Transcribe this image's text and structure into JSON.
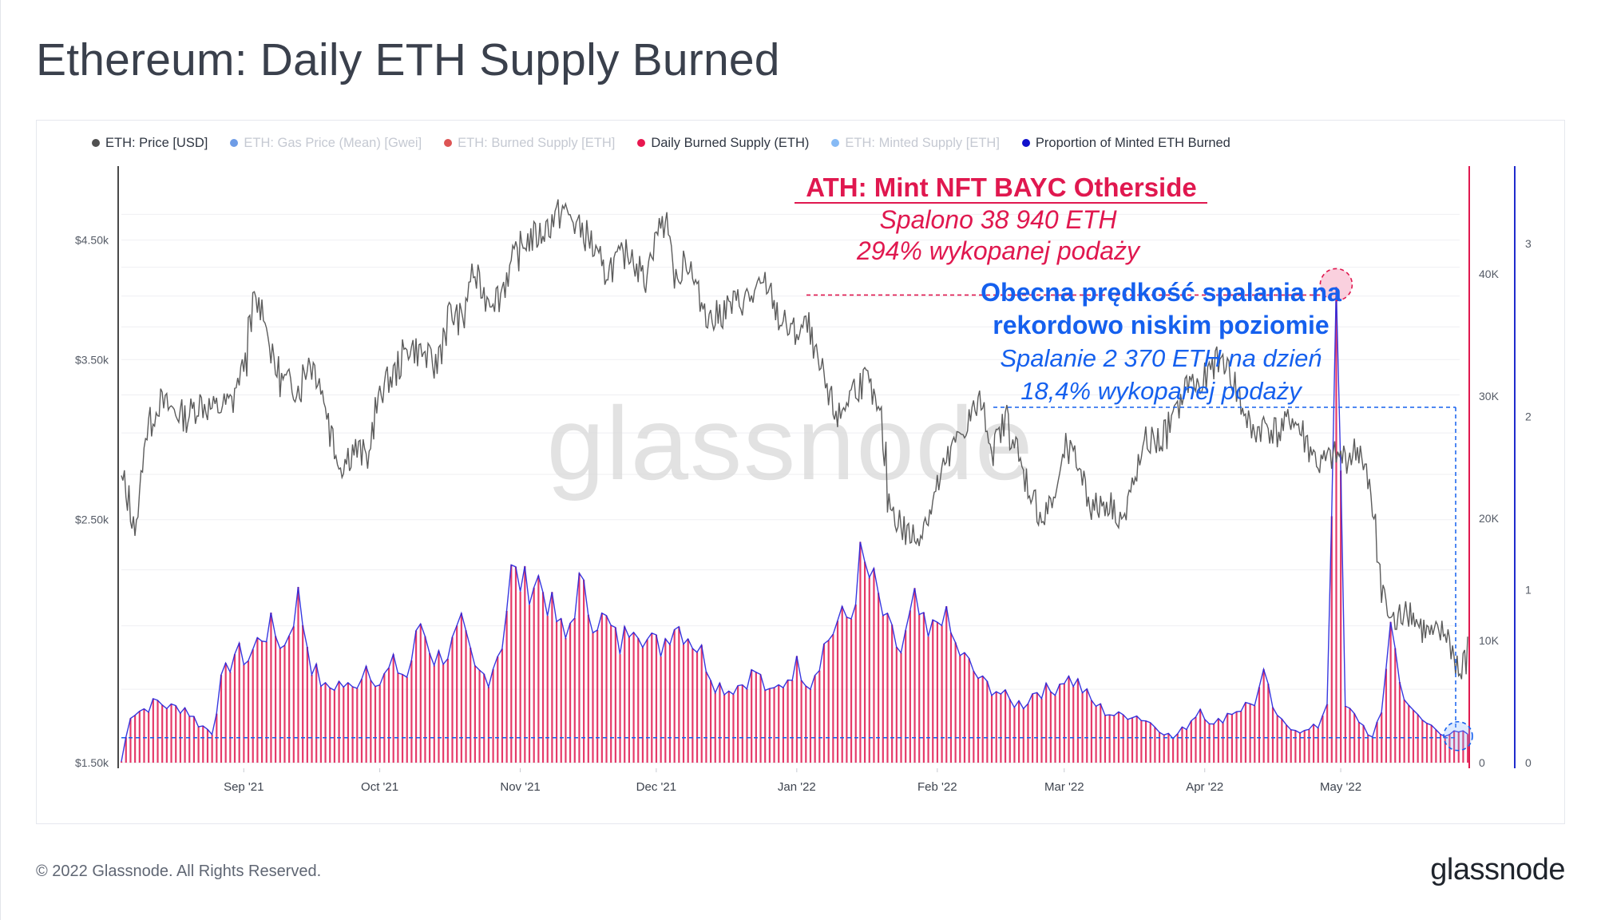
{
  "title": "Ethereum: Daily ETH Supply Burned",
  "footer": {
    "copyright": "© 2022 Glassnode. All Rights Reserved.",
    "logo": "glassnode"
  },
  "watermark": "glassnode",
  "colors": {
    "price": "#5c5c5c",
    "burn_bar": "#e0184f",
    "proportion": "#2222dd",
    "burn_axis": "#e0184f",
    "proportion_axis": "#1f2bcc",
    "ath_annotation": "#e0184f",
    "current_annotation": "#1560ee",
    "grid": "#efeff2"
  },
  "legend": [
    {
      "label": "ETH: Price [USD]",
      "color": "#505050",
      "active": true
    },
    {
      "label": "ETH: Gas Price (Mean) [Gwei]",
      "color": "#3d7bde",
      "active": false
    },
    {
      "label": "ETH: Burned Supply [ETH]",
      "color": "#d11b1b",
      "active": false
    },
    {
      "label": "Daily Burned Supply (ETH)",
      "color": "#e8174f",
      "active": true
    },
    {
      "label": "ETH: Minted Supply [ETH]",
      "color": "#5ea3f2",
      "active": false
    },
    {
      "label": "Proportion of Minted ETH Burned",
      "color": "#1010cc",
      "active": true
    }
  ],
  "annotations": {
    "ath": {
      "title": "ATH: Mint NFT BAYC Otherside",
      "line1": "Spalono 38 940 ETH",
      "line2": "294% wykopanej podaży"
    },
    "current": {
      "title_line1": "Obecna prędkość spalania na",
      "title_line2": "rekordowo niskim poziomie",
      "line1": "Spalanie 2 370 ETH na dzień",
      "line2": "18,4% wykopanej podaży"
    }
  },
  "chart_data": {
    "type": "line",
    "x_range": [
      "2021-08-05",
      "2022-05-29"
    ],
    "x_ticks": [
      {
        "date": "2021-09-01",
        "label": "Sep '21"
      },
      {
        "date": "2021-10-01",
        "label": "Oct '21"
      },
      {
        "date": "2021-11-01",
        "label": "Nov '21"
      },
      {
        "date": "2021-12-01",
        "label": "Dec '21"
      },
      {
        "date": "2022-01-01",
        "label": "Jan '22"
      },
      {
        "date": "2022-02-01",
        "label": "Feb '22"
      },
      {
        "date": "2022-03-01",
        "label": "Mar '22"
      },
      {
        "date": "2022-04-01",
        "label": "Apr '22"
      },
      {
        "date": "2022-05-01",
        "label": "May '22"
      }
    ],
    "axes": {
      "price": {
        "scale": "log",
        "range": [
          1500,
          4850
        ],
        "ticks": [
          1500,
          2500,
          3500,
          4500
        ],
        "tick_labels": [
          "$1.50k",
          "$2.50k",
          "$3.50k",
          "$4.50k"
        ]
      },
      "burned": {
        "range": [
          0,
          44000
        ],
        "ticks": [
          0,
          10000,
          20000,
          30000,
          40000
        ],
        "tick_labels": [
          "0",
          "10K",
          "20K",
          "30K",
          "40K"
        ]
      },
      "proportion": {
        "range": [
          0,
          3.0
        ],
        "ticks": [
          0,
          1,
          2,
          3
        ],
        "tick_labels": [
          "0",
          "1",
          "2",
          "3"
        ]
      }
    },
    "series": [
      {
        "name": "ETH: Price [USD]",
        "axis": "price",
        "points": [
          [
            "2021-08-05",
            2700
          ],
          [
            "2021-08-08",
            2450
          ],
          [
            "2021-08-10",
            3000
          ],
          [
            "2021-08-13",
            3200
          ],
          [
            "2021-08-16",
            3150
          ],
          [
            "2021-08-19",
            3100
          ],
          [
            "2021-08-22",
            3200
          ],
          [
            "2021-08-25",
            3150
          ],
          [
            "2021-08-29",
            3200
          ],
          [
            "2021-09-01",
            3500
          ],
          [
            "2021-09-03",
            3950
          ],
          [
            "2021-09-05",
            3900
          ],
          [
            "2021-09-07",
            3500
          ],
          [
            "2021-09-09",
            3350
          ],
          [
            "2021-09-13",
            3300
          ],
          [
            "2021-09-15",
            3500
          ],
          [
            "2021-09-17",
            3400
          ],
          [
            "2021-09-20",
            3000
          ],
          [
            "2021-09-22",
            2800
          ],
          [
            "2021-09-25",
            2900
          ],
          [
            "2021-09-28",
            2850
          ],
          [
            "2021-10-01",
            3300
          ],
          [
            "2021-10-04",
            3400
          ],
          [
            "2021-10-07",
            3600
          ],
          [
            "2021-10-10",
            3550
          ],
          [
            "2021-10-13",
            3450
          ],
          [
            "2021-10-16",
            3850
          ],
          [
            "2021-10-19",
            3800
          ],
          [
            "2021-10-21",
            4200
          ],
          [
            "2021-10-24",
            4000
          ],
          [
            "2021-10-27",
            4000
          ],
          [
            "2021-10-30",
            4300
          ],
          [
            "2021-11-02",
            4500
          ],
          [
            "2021-11-05",
            4550
          ],
          [
            "2021-11-08",
            4700
          ],
          [
            "2021-11-10",
            4800
          ],
          [
            "2021-11-13",
            4650
          ],
          [
            "2021-11-16",
            4500
          ],
          [
            "2021-11-19",
            4200
          ],
          [
            "2021-11-22",
            4300
          ],
          [
            "2021-11-25",
            4400
          ],
          [
            "2021-11-28",
            4150
          ],
          [
            "2021-12-01",
            4600
          ],
          [
            "2021-12-03",
            4700
          ],
          [
            "2021-12-05",
            4100
          ],
          [
            "2021-12-07",
            4350
          ],
          [
            "2021-12-10",
            4000
          ],
          [
            "2021-12-13",
            3800
          ],
          [
            "2021-12-16",
            3900
          ],
          [
            "2021-12-19",
            3950
          ],
          [
            "2021-12-22",
            4000
          ],
          [
            "2021-12-25",
            4100
          ],
          [
            "2021-12-28",
            3800
          ],
          [
            "2021-12-31",
            3700
          ],
          [
            "2022-01-03",
            3750
          ],
          [
            "2022-01-05",
            3500
          ],
          [
            "2022-01-08",
            3200
          ],
          [
            "2022-01-10",
            3100
          ],
          [
            "2022-01-13",
            3300
          ],
          [
            "2022-01-16",
            3350
          ],
          [
            "2022-01-19",
            3100
          ],
          [
            "2022-01-21",
            2600
          ],
          [
            "2022-01-24",
            2450
          ],
          [
            "2022-01-27",
            2400
          ],
          [
            "2022-01-30",
            2550
          ],
          [
            "2022-02-01",
            2700
          ],
          [
            "2022-02-04",
            2900
          ],
          [
            "2022-02-07",
            3050
          ],
          [
            "2022-02-10",
            3200
          ],
          [
            "2022-02-13",
            2900
          ],
          [
            "2022-02-16",
            3100
          ],
          [
            "2022-02-19",
            2800
          ],
          [
            "2022-02-22",
            2600
          ],
          [
            "2022-02-24",
            2500
          ],
          [
            "2022-02-27",
            2650
          ],
          [
            "2022-03-01",
            2900
          ],
          [
            "2022-03-04",
            2800
          ],
          [
            "2022-03-07",
            2550
          ],
          [
            "2022-03-10",
            2600
          ],
          [
            "2022-03-14",
            2500
          ],
          [
            "2022-03-16",
            2700
          ],
          [
            "2022-03-19",
            2950
          ],
          [
            "2022-03-22",
            2950
          ],
          [
            "2022-03-25",
            3100
          ],
          [
            "2022-03-28",
            3350
          ],
          [
            "2022-03-31",
            3300
          ],
          [
            "2022-04-03",
            3480
          ],
          [
            "2022-04-05",
            3500
          ],
          [
            "2022-04-08",
            3250
          ],
          [
            "2022-04-11",
            3000
          ],
          [
            "2022-04-14",
            3050
          ],
          [
            "2022-04-17",
            3000
          ],
          [
            "2022-04-20",
            3100
          ],
          [
            "2022-04-23",
            2950
          ],
          [
            "2022-04-26",
            2800
          ],
          [
            "2022-04-29",
            2850
          ],
          [
            "2022-05-02",
            2850
          ],
          [
            "2022-05-05",
            2900
          ],
          [
            "2022-05-07",
            2650
          ],
          [
            "2022-05-09",
            2300
          ],
          [
            "2022-05-11",
            2050
          ],
          [
            "2022-05-13",
            2000
          ],
          [
            "2022-05-15",
            2100
          ],
          [
            "2022-05-18",
            2000
          ],
          [
            "2022-05-21",
            1950
          ],
          [
            "2022-05-24",
            1970
          ],
          [
            "2022-05-27",
            1800
          ],
          [
            "2022-05-29",
            1900
          ]
        ]
      },
      {
        "name": "Daily Burned Supply (ETH)",
        "axis": "burned",
        "type": "bar",
        "points": [
          [
            "2021-08-05",
            100
          ],
          [
            "2021-08-07",
            4000
          ],
          [
            "2021-08-10",
            4400
          ],
          [
            "2021-08-13",
            5000
          ],
          [
            "2021-08-16",
            4500
          ],
          [
            "2021-08-19",
            4500
          ],
          [
            "2021-08-22",
            3200
          ],
          [
            "2021-08-25",
            2500
          ],
          [
            "2021-08-27",
            6500
          ],
          [
            "2021-08-30",
            9000
          ],
          [
            "2021-09-02",
            8500
          ],
          [
            "2021-09-05",
            10500
          ],
          [
            "2021-09-07",
            11000
          ],
          [
            "2021-09-10",
            9500
          ],
          [
            "2021-09-13",
            13500
          ],
          [
            "2021-09-16",
            8000
          ],
          [
            "2021-09-19",
            6000
          ],
          [
            "2021-09-22",
            6500
          ],
          [
            "2021-09-25",
            6000
          ],
          [
            "2021-09-28",
            8000
          ],
          [
            "2021-10-01",
            6500
          ],
          [
            "2021-10-04",
            8000
          ],
          [
            "2021-10-07",
            7000
          ],
          [
            "2021-10-10",
            11500
          ],
          [
            "2021-10-13",
            8500
          ],
          [
            "2021-10-16",
            9000
          ],
          [
            "2021-10-19",
            11000
          ],
          [
            "2021-10-22",
            7500
          ],
          [
            "2021-10-25",
            7000
          ],
          [
            "2021-10-28",
            10000
          ],
          [
            "2021-10-30",
            15500
          ],
          [
            "2021-11-02",
            14500
          ],
          [
            "2021-11-05",
            15000
          ],
          [
            "2021-11-08",
            12500
          ],
          [
            "2021-11-11",
            10000
          ],
          [
            "2021-11-14",
            14500
          ],
          [
            "2021-11-17",
            12000
          ],
          [
            "2021-11-20",
            11500
          ],
          [
            "2021-11-23",
            9500
          ],
          [
            "2021-11-26",
            12000
          ],
          [
            "2021-11-29",
            10000
          ],
          [
            "2021-12-02",
            9500
          ],
          [
            "2021-12-05",
            11500
          ],
          [
            "2021-12-08",
            10500
          ],
          [
            "2021-12-11",
            9000
          ],
          [
            "2021-12-14",
            6500
          ],
          [
            "2021-12-17",
            6000
          ],
          [
            "2021-12-20",
            6500
          ],
          [
            "2021-12-23",
            7500
          ],
          [
            "2021-12-26",
            5500
          ],
          [
            "2021-12-29",
            6500
          ],
          [
            "2022-01-01",
            8000
          ],
          [
            "2022-01-04",
            6500
          ],
          [
            "2022-01-07",
            9500
          ],
          [
            "2022-01-10",
            11500
          ],
          [
            "2022-01-13",
            12000
          ],
          [
            "2022-01-15",
            16500
          ],
          [
            "2022-01-18",
            14500
          ],
          [
            "2022-01-21",
            11000
          ],
          [
            "2022-01-24",
            9000
          ],
          [
            "2022-01-27",
            13000
          ],
          [
            "2022-01-30",
            10000
          ],
          [
            "2022-02-02",
            12500
          ],
          [
            "2022-02-05",
            9500
          ],
          [
            "2022-02-08",
            8000
          ],
          [
            "2022-02-11",
            6500
          ],
          [
            "2022-02-14",
            6000
          ],
          [
            "2022-02-17",
            5000
          ],
          [
            "2022-02-20",
            4800
          ],
          [
            "2022-02-23",
            6000
          ],
          [
            "2022-02-26",
            5800
          ],
          [
            "2022-03-01",
            7000
          ],
          [
            "2022-03-04",
            6500
          ],
          [
            "2022-03-07",
            5000
          ],
          [
            "2022-03-10",
            4200
          ],
          [
            "2022-03-13",
            3800
          ],
          [
            "2022-03-16",
            4000
          ],
          [
            "2022-03-19",
            3500
          ],
          [
            "2022-03-22",
            2800
          ],
          [
            "2022-03-25",
            2000
          ],
          [
            "2022-03-28",
            3000
          ],
          [
            "2022-03-31",
            4500
          ],
          [
            "2022-04-03",
            3000
          ],
          [
            "2022-04-06",
            4000
          ],
          [
            "2022-04-09",
            4500
          ],
          [
            "2022-04-12",
            5000
          ],
          [
            "2022-04-14",
            7000
          ],
          [
            "2022-04-17",
            3500
          ],
          [
            "2022-04-20",
            3000
          ],
          [
            "2022-04-23",
            2500
          ],
          [
            "2022-04-26",
            3000
          ],
          [
            "2022-04-28",
            5000
          ],
          [
            "2022-04-30",
            38940
          ],
          [
            "2022-05-02",
            4500
          ],
          [
            "2022-05-05",
            3500
          ],
          [
            "2022-05-08",
            2000
          ],
          [
            "2022-05-10",
            4000
          ],
          [
            "2022-05-12",
            12000
          ],
          [
            "2022-05-14",
            6500
          ],
          [
            "2022-05-17",
            4000
          ],
          [
            "2022-05-20",
            3200
          ],
          [
            "2022-05-24",
            2370
          ],
          [
            "2022-05-29",
            2370
          ]
        ]
      },
      {
        "name": "Proportion of Minted ETH Burned",
        "axis": "proportion",
        "points": [
          [
            "2021-08-05",
            0.0
          ],
          [
            "2022-04-28",
            0.3
          ],
          [
            "2022-04-29",
            2.94
          ],
          [
            "2022-05-01",
            0.35
          ],
          [
            "2022-05-29",
            0.184
          ]
        ]
      }
    ],
    "reference_lines": [
      {
        "name": "ATH level",
        "axis": "burned",
        "value": 38940
      },
      {
        "name": "Current burn level",
        "axis": "burned",
        "value": 2370
      }
    ]
  }
}
